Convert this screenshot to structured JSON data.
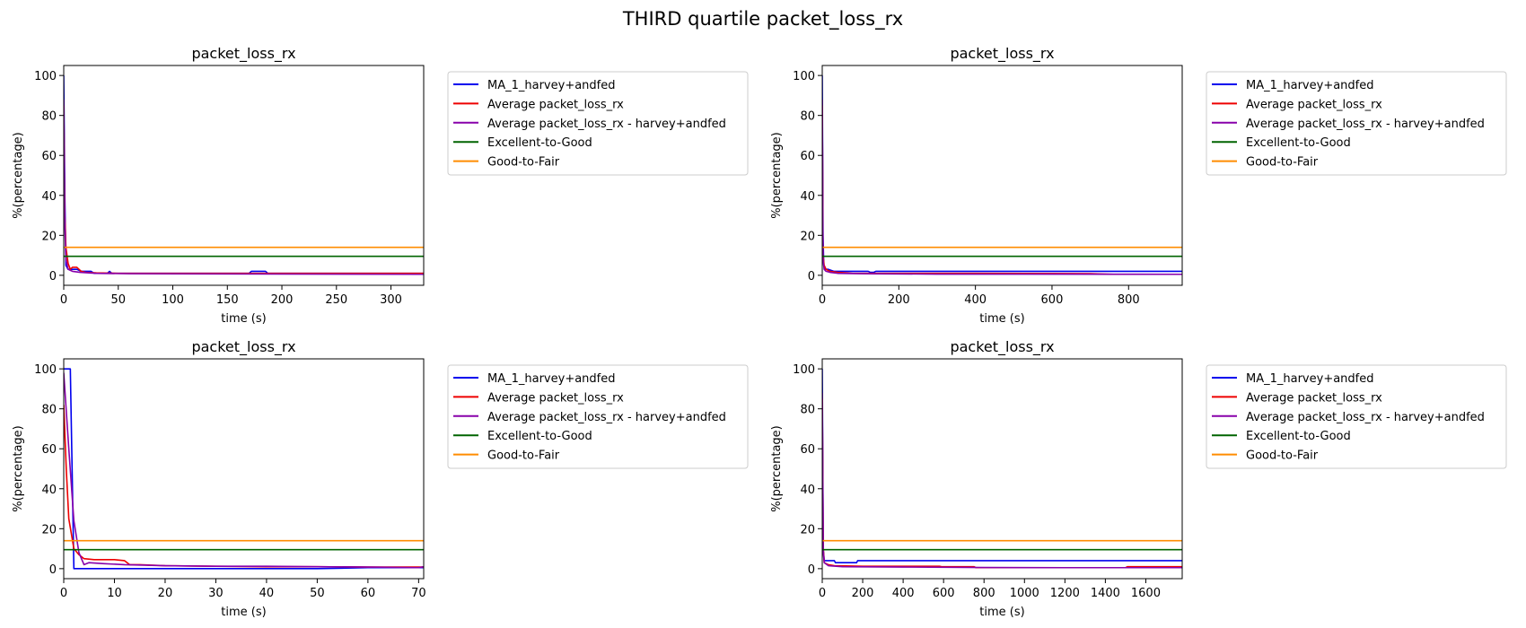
{
  "figure": {
    "suptitle": "THIRD quartile packet_loss_rx"
  },
  "colors": {
    "ma": "#0000ee",
    "avg": "#ee0000",
    "avg_hf": "#8800aa",
    "exc_good": "#006400",
    "good_fair": "#ff8c00"
  },
  "chart_data": [
    {
      "type": "line",
      "title": "packet_loss_rx",
      "xlabel": "time (s)",
      "ylabel": "%(percentage)",
      "xlim": [
        0,
        330
      ],
      "ylim": [
        -5,
        105
      ],
      "xticks": [
        0,
        50,
        100,
        150,
        200,
        250,
        300
      ],
      "yticks": [
        0,
        20,
        40,
        60,
        80,
        100
      ],
      "legend": "outside-right-top",
      "series": [
        {
          "name": "MA_1_harvey+andfed",
          "color": "ma",
          "x": [
            0,
            1,
            2,
            4,
            8,
            12,
            16,
            20,
            25,
            28,
            30,
            40,
            42,
            44,
            60,
            100,
            150,
            170,
            172,
            185,
            187,
            250,
            330
          ],
          "y": [
            100,
            40,
            5,
            3,
            3,
            3,
            2,
            2,
            2,
            1,
            1,
            1,
            2,
            1,
            1,
            1,
            1,
            1,
            2,
            2,
            1,
            1,
            1
          ]
        },
        {
          "name": "Average packet_loss_rx",
          "color": "avg",
          "x": [
            0,
            1,
            2,
            4,
            6,
            8,
            10,
            12,
            14,
            16,
            20,
            30,
            50,
            100,
            200,
            330
          ],
          "y": [
            85,
            30,
            14,
            6,
            3,
            4,
            4,
            4,
            3,
            2,
            1.5,
            1.2,
            1,
            1,
            1,
            1
          ]
        },
        {
          "name": "Average packet_loss_rx - harvey+andfed",
          "color": "avg_hf",
          "x": [
            0,
            1,
            2,
            4,
            8,
            15,
            30,
            60,
            150,
            330
          ],
          "y": [
            88,
            25,
            8,
            3,
            2,
            1.5,
            1,
            0.8,
            0.7,
            0.5
          ]
        },
        {
          "name": "Excellent-to-Good",
          "color": "exc_good",
          "x": [
            0,
            330
          ],
          "y": [
            9.5,
            9.5
          ]
        },
        {
          "name": "Good-to-Fair",
          "color": "good_fair",
          "x": [
            0,
            330
          ],
          "y": [
            14,
            14
          ]
        }
      ]
    },
    {
      "type": "line",
      "title": "packet_loss_rx",
      "xlabel": "time (s)",
      "ylabel": "%(percentage)",
      "xlim": [
        0,
        940
      ],
      "ylim": [
        -5,
        105
      ],
      "xticks": [
        0,
        200,
        400,
        600,
        800
      ],
      "yticks": [
        0,
        20,
        40,
        60,
        80,
        100
      ],
      "legend": "outside-right-top",
      "series": [
        {
          "name": "MA_1_harvey+andfed",
          "color": "ma",
          "x": [
            0,
            2,
            4,
            8,
            15,
            30,
            50,
            120,
            125,
            135,
            140,
            300,
            940
          ],
          "y": [
            100,
            20,
            5,
            3,
            3,
            2,
            2,
            2,
            1.5,
            1.5,
            2,
            2,
            2
          ]
        },
        {
          "name": "Average packet_loss_rx",
          "color": "avg",
          "x": [
            0,
            2,
            5,
            10,
            20,
            40,
            80,
            200,
            400,
            700,
            760,
            940
          ],
          "y": [
            85,
            10,
            5,
            3,
            2,
            1.5,
            1,
            1,
            1,
            0.8,
            0.5,
            0.5
          ]
        },
        {
          "name": "Average packet_loss_rx - harvey+andfed",
          "color": "avg_hf",
          "x": [
            0,
            2,
            5,
            10,
            20,
            40,
            100,
            300,
            940
          ],
          "y": [
            88,
            8,
            3,
            2,
            1.5,
            1,
            0.8,
            0.6,
            0.5
          ]
        },
        {
          "name": "Excellent-to-Good",
          "color": "exc_good",
          "x": [
            0,
            940
          ],
          "y": [
            9.5,
            9.5
          ]
        },
        {
          "name": "Good-to-Fair",
          "color": "good_fair",
          "x": [
            0,
            940
          ],
          "y": [
            14,
            14
          ]
        }
      ]
    },
    {
      "type": "line",
      "title": "packet_loss_rx",
      "xlabel": "time (s)",
      "ylabel": "%(percentage)",
      "xlim": [
        0,
        71
      ],
      "ylim": [
        -5,
        105
      ],
      "xticks": [
        0,
        10,
        20,
        30,
        40,
        50,
        60,
        70
      ],
      "yticks": [
        0,
        20,
        40,
        60,
        80,
        100
      ],
      "legend": "outside-right-top",
      "series": [
        {
          "name": "MA_1_harvey+andfed",
          "color": "ma",
          "x": [
            0,
            1,
            1.3,
            2,
            3,
            30,
            50,
            60,
            70,
            71
          ],
          "y": [
            100,
            100,
            100,
            0,
            0,
            0,
            0,
            0.5,
            0.5,
            0.5
          ]
        },
        {
          "name": "Average packet_loss_rx",
          "color": "avg",
          "x": [
            0,
            0.5,
            1,
            2,
            3,
            4,
            6,
            8,
            10,
            12,
            13,
            15,
            20,
            30,
            40,
            50,
            60,
            71
          ],
          "y": [
            82,
            50,
            25,
            10,
            7,
            5,
            4.5,
            4.5,
            4.5,
            4,
            2,
            2,
            1.5,
            1.2,
            1,
            1,
            0.8,
            0.8
          ]
        },
        {
          "name": "Average packet_loss_rx - harvey+andfed",
          "color": "avg_hf",
          "x": [
            0,
            1,
            2,
            3,
            4,
            5,
            8,
            12,
            20,
            30,
            40,
            50,
            60,
            70,
            71
          ],
          "y": [
            98,
            60,
            24,
            8,
            2,
            3,
            2.5,
            2,
            1.5,
            1.2,
            1.2,
            1,
            0.8,
            0.5,
            1
          ]
        },
        {
          "name": "Excellent-to-Good",
          "color": "exc_good",
          "x": [
            0,
            71
          ],
          "y": [
            9.5,
            9.5
          ]
        },
        {
          "name": "Good-to-Fair",
          "color": "good_fair",
          "x": [
            0,
            71
          ],
          "y": [
            14,
            14
          ]
        }
      ]
    },
    {
      "type": "line",
      "title": "packet_loss_rx",
      "xlabel": "time (s)",
      "ylabel": "%(percentage)",
      "xlim": [
        0,
        1780
      ],
      "ylim": [
        -5,
        105
      ],
      "xticks": [
        0,
        200,
        400,
        600,
        800,
        1000,
        1200,
        1400,
        1600
      ],
      "yticks": [
        0,
        20,
        40,
        60,
        80,
        100
      ],
      "legend": "outside-right-top",
      "series": [
        {
          "name": "MA_1_harvey+andfed",
          "color": "ma",
          "x": [
            0,
            5,
            10,
            20,
            50,
            60,
            65,
            170,
            175,
            185,
            190,
            1780
          ],
          "y": [
            100,
            10,
            4,
            4,
            4,
            4,
            3,
            3,
            4,
            4,
            4,
            4
          ]
        },
        {
          "name": "Average packet_loss_rx",
          "color": "avg",
          "x": [
            0,
            5,
            10,
            30,
            60,
            200,
            580,
            590,
            750,
            760,
            1000,
            1500,
            1510,
            1780
          ],
          "y": [
            85,
            10,
            3,
            2,
            1.5,
            1.2,
            1.2,
            1,
            1,
            0.5,
            0.5,
            0.5,
            1,
            1
          ]
        },
        {
          "name": "Average packet_loss_rx - harvey+andfed",
          "color": "avg_hf",
          "x": [
            0,
            5,
            10,
            30,
            100,
            400,
            800,
            1200,
            1780
          ],
          "y": [
            88,
            8,
            3,
            1.5,
            1,
            0.8,
            0.6,
            0.5,
            0.5
          ]
        },
        {
          "name": "Excellent-to-Good",
          "color": "exc_good",
          "x": [
            0,
            1780
          ],
          "y": [
            9.5,
            9.5
          ]
        },
        {
          "name": "Good-to-Fair",
          "color": "good_fair",
          "x": [
            0,
            1780
          ],
          "y": [
            14,
            14
          ]
        }
      ]
    }
  ]
}
